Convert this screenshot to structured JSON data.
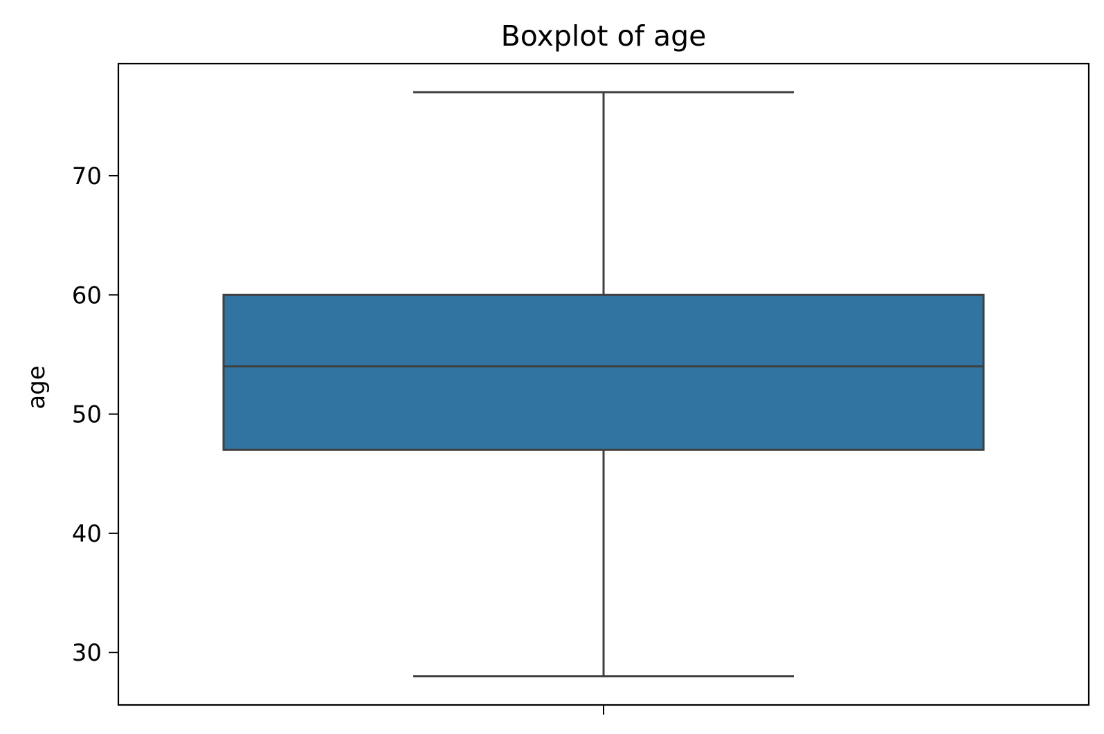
{
  "chart_data": {
    "type": "box",
    "title": "Boxplot of age",
    "xlabel": "",
    "ylabel": "age",
    "ylim": [
      25.6,
      79.4
    ],
    "yticks": [
      30,
      40,
      50,
      60,
      70
    ],
    "box": {
      "whisker_low": 28,
      "q1": 47,
      "median": 54,
      "q3": 60,
      "whisker_high": 77
    },
    "grid": false,
    "colors": {
      "box_fill": "#3274a1",
      "box_edge": "#3f3f3f",
      "axes": "#000000"
    }
  }
}
